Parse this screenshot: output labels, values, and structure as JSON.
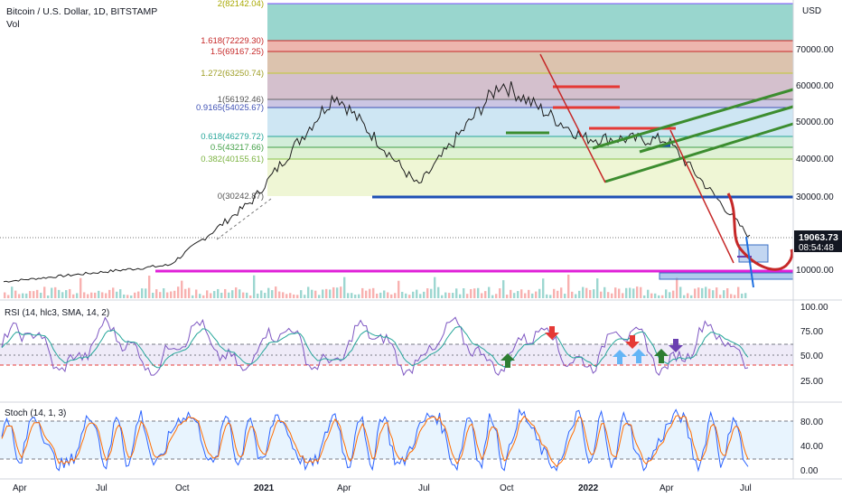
{
  "header": {
    "title": "Bitcoin / U.S. Dollar, 1D, BITSTAMP",
    "vol_label": "Vol"
  },
  "price_axis": {
    "unit": "USD",
    "ticks": [
      "70000.00",
      "60000.00",
      "50000.00",
      "40000.00",
      "30000.00",
      "10000.00"
    ],
    "last_price": "19063.73",
    "countdown": "08:54:48"
  },
  "time_axis": {
    "labels": [
      "Apr",
      "Jul",
      "Oct",
      "2021",
      "Apr",
      "Jul",
      "Oct",
      "2022",
      "Apr",
      "Jul"
    ]
  },
  "fib_levels": [
    {
      "label": "2(82142.04)",
      "color": "#b0b018"
    },
    {
      "label": "1.618(72229.30)",
      "color": "#d32f2f"
    },
    {
      "label": "1.5(69167.25)",
      "color": "#d32f2f"
    },
    {
      "label": "1.272(63250.74)",
      "color": "#a8a800"
    },
    {
      "label": "1(56192.46)",
      "color": "#555555"
    },
    {
      "label": "0.9165(54025.67)",
      "color": "#3f51b5"
    },
    {
      "label": "0.618(46279.72)",
      "color": "#26a69a"
    },
    {
      "label": "0.5(43217.66)",
      "color": "#43a047"
    },
    {
      "label": "0.382(40155.61)",
      "color": "#8bc34a"
    },
    {
      "label": "0(30242.87)",
      "color": "#555555"
    }
  ],
  "rsi": {
    "label": "RSI (14, hlc3, SMA, 14, 2)",
    "ticks": [
      "100.00",
      "75.00",
      "50.00",
      "25.00"
    ]
  },
  "stoch": {
    "label": "Stoch (14, 1, 3)",
    "ticks": [
      "80.00",
      "40.00",
      "0.00"
    ]
  },
  "chart_data": {
    "type": "line",
    "title": "Bitcoin / U.S. Dollar, 1D, BITSTAMP",
    "ylabel": "USD",
    "x": [
      "2020-04",
      "2020-07",
      "2020-10",
      "2021-01",
      "2021-04",
      "2021-07",
      "2021-10",
      "2022-01",
      "2022-04",
      "2022-07"
    ],
    "series": [
      {
        "name": "BTCUSD",
        "values": [
          7000,
          9200,
          11500,
          29000,
          58000,
          33000,
          61000,
          46000,
          45500,
          19063.73
        ]
      }
    ],
    "ylim": [
      4000,
      87000
    ],
    "fib_values": [
      82142.04,
      72229.3,
      69167.25,
      63250.74,
      56192.46,
      54025.67,
      46279.72,
      43217.66,
      40155.61,
      30242.87
    ],
    "support_lines": [
      30000,
      10000
    ],
    "last_price": 19063.73,
    "rsi_range": [
      0,
      100
    ],
    "stoch_range": [
      0,
      100
    ]
  }
}
